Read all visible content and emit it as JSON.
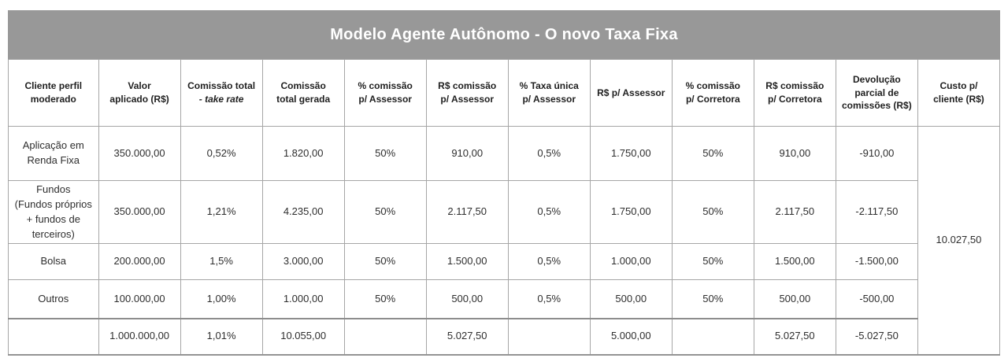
{
  "title": "Modelo Agente Autônomo - O novo Taxa Fixa",
  "colors": {
    "title_bar_bg": "#989898",
    "title_text": "#ffffff",
    "grid_line": "#a6a6a6",
    "header_underline": "#7c7c7c",
    "body_text": "#2e2e2e"
  },
  "table": {
    "columns": [
      {
        "label": "Cliente perfil\nmoderado"
      },
      {
        "label": "Valor\naplicado (R$)"
      },
      {
        "label": "Comissão total",
        "sublabel": "- take rate"
      },
      {
        "label": "Comissão\ntotal gerada"
      },
      {
        "label": "% comissão\np/ Assessor"
      },
      {
        "label": "R$ comissão\np/ Assessor"
      },
      {
        "label": "% Taxa única\np/ Assessor"
      },
      {
        "label": "R$ p/ Assessor"
      },
      {
        "label": "% comissão\np/ Corretora"
      },
      {
        "label": "R$ comissão\np/ Corretora"
      },
      {
        "label": "Devolução\nparcial de\ncomissões (R$)"
      },
      {
        "label": "Custo p/\ncliente (R$)"
      }
    ],
    "rows": [
      {
        "cells": [
          "Aplicação em\nRenda Fixa",
          "350.000,00",
          "0,52%",
          "1.820,00",
          "50%",
          "910,00",
          "0,5%",
          "1.750,00",
          "50%",
          "910,00",
          "-910,00"
        ]
      },
      {
        "cells": [
          "Fundos\n(Fundos próprios\n+ fundos de\nterceiros)",
          "350.000,00",
          "1,21%",
          "4.235,00",
          "50%",
          "2.117,50",
          "0,5%",
          "1.750,00",
          "50%",
          "2.117,50",
          "-2.117,50"
        ]
      },
      {
        "cells": [
          "Bolsa",
          "200.000,00",
          "1,5%",
          "3.000,00",
          "50%",
          "1.500,00",
          "0,5%",
          "1.000,00",
          "50%",
          "1.500,00",
          "-1.500,00"
        ]
      },
      {
        "cells": [
          "Outros",
          "100.000,00",
          "1,00%",
          "1.000,00",
          "50%",
          "500,00",
          "0,5%",
          "500,00",
          "50%",
          "500,00",
          "-500,00"
        ]
      },
      {
        "cells": [
          "",
          "1.000.000,00",
          "1,01%",
          "10.055,00",
          "",
          "5.027,50",
          "",
          "5.000,00",
          "",
          "5.027,50",
          "-5.027,50"
        ],
        "is_total": true
      }
    ],
    "custo_cliente_total": "10.027,50"
  }
}
